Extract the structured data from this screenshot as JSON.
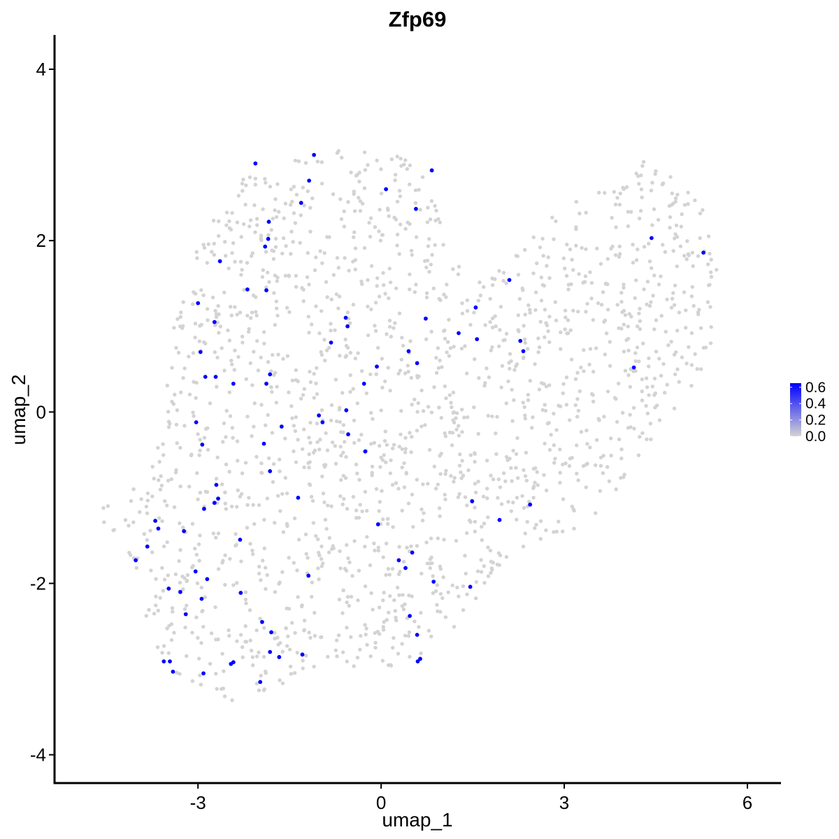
{
  "chart_data": {
    "type": "scatter",
    "title": "Zfp69",
    "xlabel": "umap_1",
    "ylabel": "umap_2",
    "xlim": [
      -5.35,
      6.55
    ],
    "ylim": [
      -4.33,
      4.4
    ],
    "x_ticks": [
      {
        "value": -3,
        "label": "-3"
      },
      {
        "value": 0,
        "label": "0"
      },
      {
        "value": 3,
        "label": "3"
      },
      {
        "value": 6,
        "label": "6"
      }
    ],
    "y_ticks": [
      {
        "value": -4,
        "label": "-4"
      },
      {
        "value": -2,
        "label": "-2"
      },
      {
        "value": 0,
        "label": "0"
      },
      {
        "value": 2,
        "label": "2"
      },
      {
        "value": 4,
        "label": "4"
      }
    ],
    "grid": false,
    "legend_position": "right",
    "colors": {
      "low": "#d3d3d3",
      "high": "#0000ff"
    },
    "color_scale": {
      "min": 0.0,
      "max": 0.65,
      "ticks": [
        {
          "value": 0.0,
          "label": "0.0"
        },
        {
          "value": 0.2,
          "label": "0.2"
        },
        {
          "value": 0.4,
          "label": "0.4"
        },
        {
          "value": 0.6,
          "label": "0.6"
        }
      ]
    },
    "expressing_cells": [
      [
        -2.06,
        2.9
      ],
      [
        -1.1,
        3.0
      ],
      [
        -1.18,
        2.7
      ],
      [
        -1.31,
        2.44
      ],
      [
        0.08,
        2.6
      ],
      [
        0.83,
        2.82
      ],
      [
        0.57,
        2.37
      ],
      [
        -1.84,
        2.22
      ],
      [
        -1.85,
        2.02
      ],
      [
        -1.9,
        1.93
      ],
      [
        -2.64,
        1.76
      ],
      [
        -2.19,
        1.43
      ],
      [
        -1.88,
        1.42
      ],
      [
        -3.0,
        1.27
      ],
      [
        -2.73,
        1.05
      ],
      [
        -0.58,
        1.1
      ],
      [
        -0.55,
        1.0
      ],
      [
        -0.82,
        0.81
      ],
      [
        -2.96,
        0.7
      ],
      [
        -2.88,
        0.41
      ],
      [
        -2.71,
        0.41
      ],
      [
        -2.42,
        0.33
      ],
      [
        -1.82,
        0.44
      ],
      [
        -1.88,
        0.33
      ],
      [
        -0.07,
        0.53
      ],
      [
        0.45,
        0.71
      ],
      [
        0.59,
        0.57
      ],
      [
        -0.28,
        0.33
      ],
      [
        0.73,
        1.09
      ],
      [
        1.27,
        0.92
      ],
      [
        1.55,
        1.22
      ],
      [
        1.57,
        0.85
      ],
      [
        2.1,
        1.54
      ],
      [
        2.28,
        0.83
      ],
      [
        2.33,
        0.71
      ],
      [
        4.43,
        2.03
      ],
      [
        5.28,
        1.86
      ],
      [
        4.14,
        0.52
      ],
      [
        -3.03,
        -0.12
      ],
      [
        -2.93,
        -0.38
      ],
      [
        -1.63,
        -0.17
      ],
      [
        -1.02,
        -0.04
      ],
      [
        -0.96,
        -0.12
      ],
      [
        -0.57,
        0.02
      ],
      [
        -0.54,
        -0.26
      ],
      [
        -1.92,
        -0.37
      ],
      [
        -1.82,
        -0.69
      ],
      [
        -0.26,
        -0.46
      ],
      [
        -2.7,
        -0.85
      ],
      [
        -2.73,
        -1.06
      ],
      [
        -2.67,
        -1.01
      ],
      [
        -2.9,
        -1.13
      ],
      [
        -1.36,
        -1.0
      ],
      [
        -0.05,
        -1.31
      ],
      [
        1.49,
        -1.04
      ],
      [
        2.44,
        -1.08
      ],
      [
        1.94,
        -1.26
      ],
      [
        -3.7,
        -1.27
      ],
      [
        -3.65,
        -1.36
      ],
      [
        -3.23,
        -1.39
      ],
      [
        -3.83,
        -1.57
      ],
      [
        -4.02,
        -1.73
      ],
      [
        -2.31,
        -1.49
      ],
      [
        0.51,
        -1.64
      ],
      [
        0.29,
        -1.73
      ],
      [
        0.4,
        -1.82
      ],
      [
        -3.04,
        -1.86
      ],
      [
        -2.85,
        -1.95
      ],
      [
        -3.48,
        -2.06
      ],
      [
        -3.29,
        -2.1
      ],
      [
        -2.94,
        -2.18
      ],
      [
        -2.3,
        -2.11
      ],
      [
        -1.19,
        -1.91
      ],
      [
        0.86,
        -1.98
      ],
      [
        1.46,
        -2.04
      ],
      [
        -3.2,
        -2.36
      ],
      [
        -1.95,
        -2.45
      ],
      [
        -1.8,
        -2.57
      ],
      [
        0.47,
        -2.38
      ],
      [
        0.59,
        -2.6
      ],
      [
        -3.56,
        -2.91
      ],
      [
        -3.46,
        -2.91
      ],
      [
        -3.41,
        -3.03
      ],
      [
        -1.82,
        -2.8
      ],
      [
        -1.67,
        -2.86
      ],
      [
        -1.29,
        -2.83
      ],
      [
        -2.46,
        -2.94
      ],
      [
        -2.42,
        -2.92
      ],
      [
        -2.91,
        -3.05
      ],
      [
        -1.98,
        -3.15
      ],
      [
        0.6,
        -2.91
      ],
      [
        0.64,
        -2.88
      ]
    ]
  }
}
